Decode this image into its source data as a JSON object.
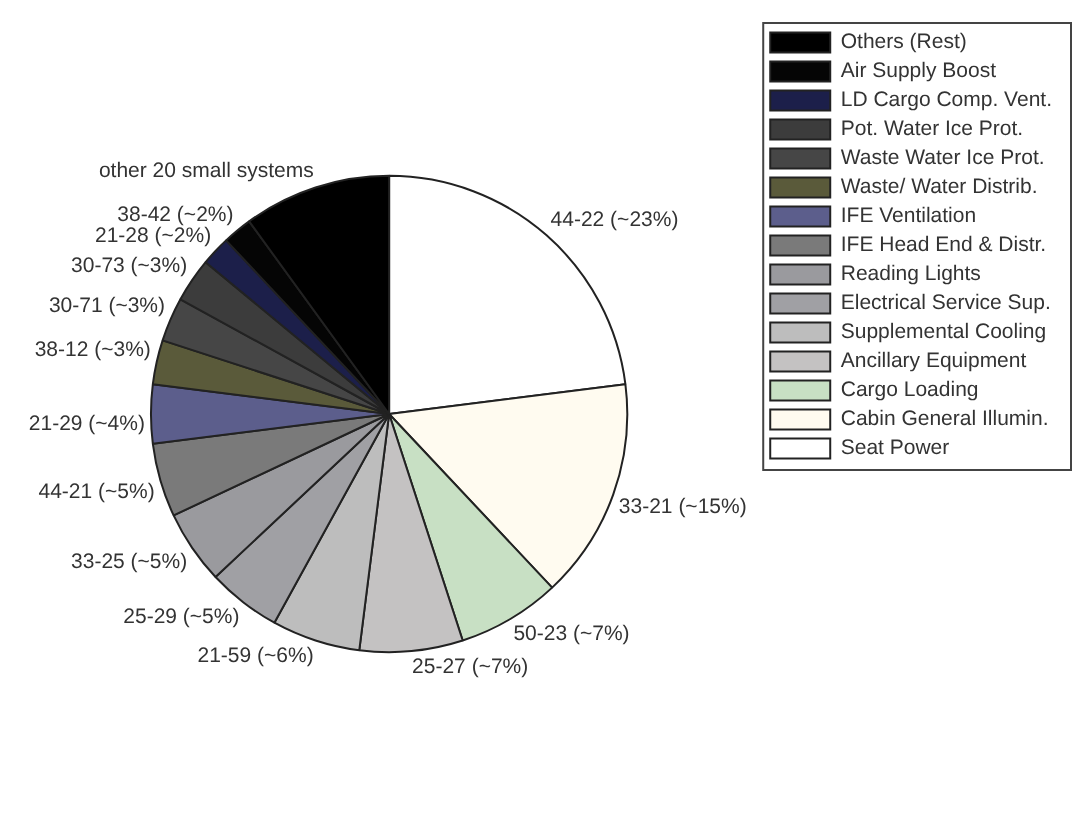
{
  "chart_data": {
    "type": "pie",
    "categories": [
      "Seat Power",
      "Cabin General Illumin.",
      "Cargo Loading",
      "Ancillary Equipment",
      "Supplemental Cooling",
      "Electrical Service Sup.",
      "Reading Lights",
      "IFE Head End & Distr.",
      "IFE Ventilation",
      "Waste/ Water Distrib.",
      "Waste Water Ice Prot.",
      "Pot. Water Ice Prot.",
      "LD Cargo Comp. Vent.",
      "Air Supply Boost",
      "Others (Rest)"
    ],
    "values": [
      23,
      15,
      7,
      7,
      6,
      5,
      5,
      5,
      4,
      3,
      3,
      3,
      2,
      2,
      10
    ],
    "colors": [
      "#ffffff",
      "#fffbf0",
      "#c8e0c4",
      "#c4c2c2",
      "#bdbdbd",
      "#a0a0a4",
      "#9a9a9e",
      "#7a7a7a",
      "#5c5e8c",
      "#5a5a3a",
      "#464646",
      "#3c3c3c",
      "#1c1f4a",
      "#050505",
      "#000000"
    ],
    "value_labels": [
      "44-22 (~23%)",
      "33-21 (~15%)",
      "50-23 (~7%)",
      "25-27 (~7%)",
      "21-59 (~6%)",
      "25-29 (~5%)",
      "33-25 (~5%)",
      "44-21 (~5%)",
      "21-29 (~4%)",
      "38-12 (~3%)",
      "30-71 (~3%)",
      "30-73 (~3%)",
      "21-28 (~2%)",
      "38-42 (~2%)",
      "other 20 small systems"
    ],
    "legend": "top right"
  }
}
